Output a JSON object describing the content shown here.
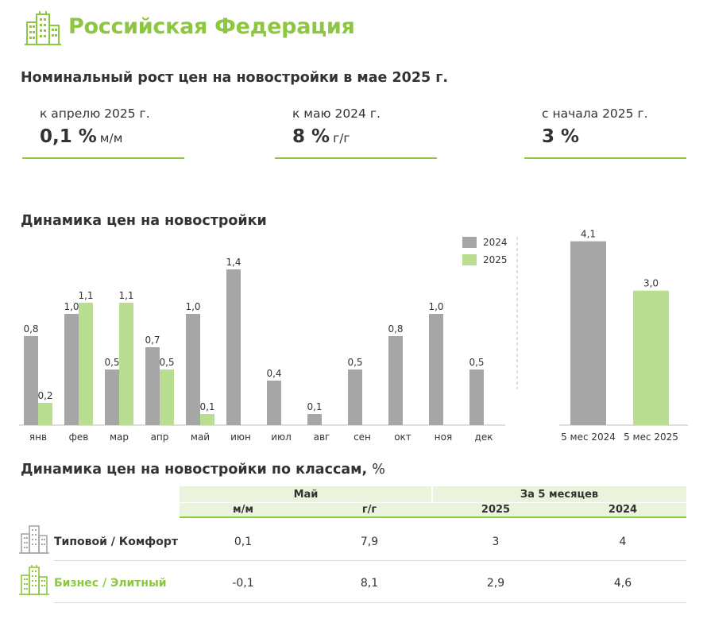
{
  "header": {
    "title": "Российская Федерация"
  },
  "growth": {
    "title": "Номинальный рост цен на новостройки в мае 2025 г.",
    "kpis": [
      {
        "label": "к апрелю 2025 г.",
        "value": "0,1 %",
        "unit": "м/м"
      },
      {
        "label": "к маю 2024 г.",
        "value": "8 %",
        "unit": "г/г"
      },
      {
        "label": "с начала 2025 г.",
        "value": "3 %",
        "unit": ""
      }
    ]
  },
  "dynamics_title": "Динамика цен на новостройки",
  "chart_data": [
    {
      "type": "bar",
      "categories": [
        "янв",
        "фев",
        "мар",
        "апр",
        "май",
        "июн",
        "июл",
        "авг",
        "сен",
        "окт",
        "ноя",
        "дек"
      ],
      "series": [
        {
          "name": "2024",
          "color": "#A6A6A6",
          "values": [
            0.8,
            1.0,
            0.5,
            0.7,
            1.0,
            1.4,
            0.4,
            0.1,
            0.5,
            0.8,
            1.0,
            0.5
          ],
          "labels": [
            "0,8",
            "1,0",
            "0,5",
            "0,7",
            "1,0",
            "1,4",
            "0,4",
            "0,1",
            "0,5",
            "0,8",
            "1,0",
            "0,5"
          ]
        },
        {
          "name": "2025",
          "color": "#B9DE92",
          "values": [
            0.2,
            1.1,
            1.1,
            0.5,
            0.1,
            null,
            null,
            null,
            null,
            null,
            null,
            null
          ],
          "labels": [
            "0,2",
            "1,1",
            "1,1",
            "0,5",
            "0,1",
            "",
            "",
            "",
            "",
            "",
            "",
            ""
          ]
        }
      ],
      "legend": "top-right",
      "ylim": [
        0,
        1.5
      ],
      "grid": false
    },
    {
      "type": "bar",
      "categories": [
        "5 мес 2024",
        "5 мес 2025"
      ],
      "values": [
        4.1,
        3.0
      ],
      "labels": [
        "4,1",
        "3,0"
      ],
      "colors": [
        "#A6A6A6",
        "#B9DE92"
      ],
      "ylim": [
        0,
        4.2
      ],
      "grid": false
    }
  ],
  "classes": {
    "title": "Динамика цен на новостройки по классам,",
    "title_unit": "%",
    "header_may": "Май",
    "header_5m": "За 5 месяцев",
    "col_mm": "м/м",
    "col_yy": "г/г",
    "col_2025": "2025",
    "col_2024": "2024",
    "rows": [
      {
        "label": "Типовой / Комфорт",
        "color": "#333333",
        "mm": "0,1",
        "yy": "7,9",
        "y2025": "3",
        "y2024": "4"
      },
      {
        "label": "Бизнес  / Элитный",
        "color": "#8DC63F",
        "mm": "-0,1",
        "yy": "8,1",
        "y2025": "2,9",
        "y2024": "4,6"
      }
    ]
  },
  "colors": {
    "accent": "#8DC63F",
    "grey_bar": "#A6A6A6",
    "green_bar": "#B9DE92"
  }
}
